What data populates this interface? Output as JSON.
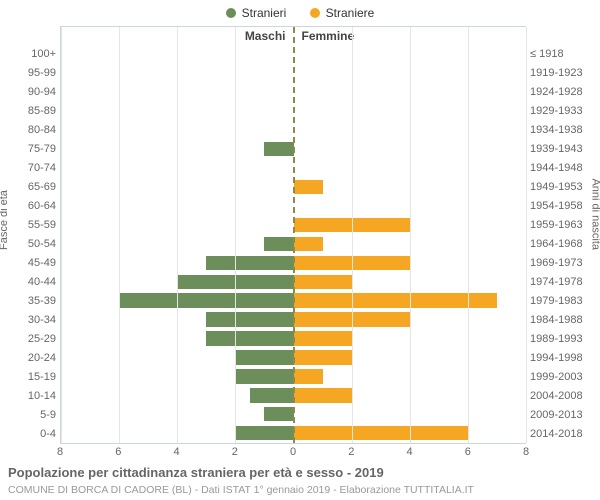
{
  "chart": {
    "type": "population-pyramid",
    "background_color": "#ffffff",
    "grid_color": "#e5e5e5",
    "border_color": "#ccd6dd",
    "center_line_color": "#8a8a4a",
    "text_color": "#666666",
    "title": "Popolazione per cittadinanza straniera per età e sesso - 2019",
    "title_fontsize": 13,
    "subtitle": "COMUNE DI BORCA DI CADORE (BL) - Dati ISTAT 1° gennaio 2019 - Elaborazione TUTTITALIA.IT",
    "subtitle_fontsize": 10.5,
    "left_axis_title": "Fasce di età",
    "right_axis_title": "Anni di nascita",
    "left_half_title": "Maschi",
    "right_half_title": "Femmine",
    "x_max": 8,
    "x_ticks": [
      0,
      2,
      4,
      6,
      8
    ],
    "legend": [
      {
        "label": "Stranieri",
        "color": "#6b8e5a"
      },
      {
        "label": "Straniere",
        "color": "#f5a623"
      }
    ],
    "series_colors": {
      "male": "#6b8e5a",
      "female": "#f5a623"
    },
    "rows": [
      {
        "age": "100+",
        "birth": "≤ 1918",
        "m": 0,
        "f": 0
      },
      {
        "age": "95-99",
        "birth": "1919-1923",
        "m": 0,
        "f": 0
      },
      {
        "age": "90-94",
        "birth": "1924-1928",
        "m": 0,
        "f": 0
      },
      {
        "age": "85-89",
        "birth": "1929-1933",
        "m": 0,
        "f": 0
      },
      {
        "age": "80-84",
        "birth": "1934-1938",
        "m": 0,
        "f": 0
      },
      {
        "age": "75-79",
        "birth": "1939-1943",
        "m": 1,
        "f": 0
      },
      {
        "age": "70-74",
        "birth": "1944-1948",
        "m": 0,
        "f": 0
      },
      {
        "age": "65-69",
        "birth": "1949-1953",
        "m": 0,
        "f": 1
      },
      {
        "age": "60-64",
        "birth": "1954-1958",
        "m": 0,
        "f": 0
      },
      {
        "age": "55-59",
        "birth": "1959-1963",
        "m": 0,
        "f": 4
      },
      {
        "age": "50-54",
        "birth": "1964-1968",
        "m": 1,
        "f": 1
      },
      {
        "age": "45-49",
        "birth": "1969-1973",
        "m": 3,
        "f": 4
      },
      {
        "age": "40-44",
        "birth": "1974-1978",
        "m": 4,
        "f": 2
      },
      {
        "age": "35-39",
        "birth": "1979-1983",
        "m": 6,
        "f": 7
      },
      {
        "age": "30-34",
        "birth": "1984-1988",
        "m": 3,
        "f": 4
      },
      {
        "age": "25-29",
        "birth": "1989-1993",
        "m": 3,
        "f": 2
      },
      {
        "age": "20-24",
        "birth": "1994-1998",
        "m": 2,
        "f": 2
      },
      {
        "age": "15-19",
        "birth": "1999-2003",
        "m": 2,
        "f": 1
      },
      {
        "age": "10-14",
        "birth": "2004-2008",
        "m": 1.5,
        "f": 2
      },
      {
        "age": "5-9",
        "birth": "2009-2013",
        "m": 1,
        "f": 0
      },
      {
        "age": "0-4",
        "birth": "2014-2018",
        "m": 2,
        "f": 6
      }
    ]
  }
}
